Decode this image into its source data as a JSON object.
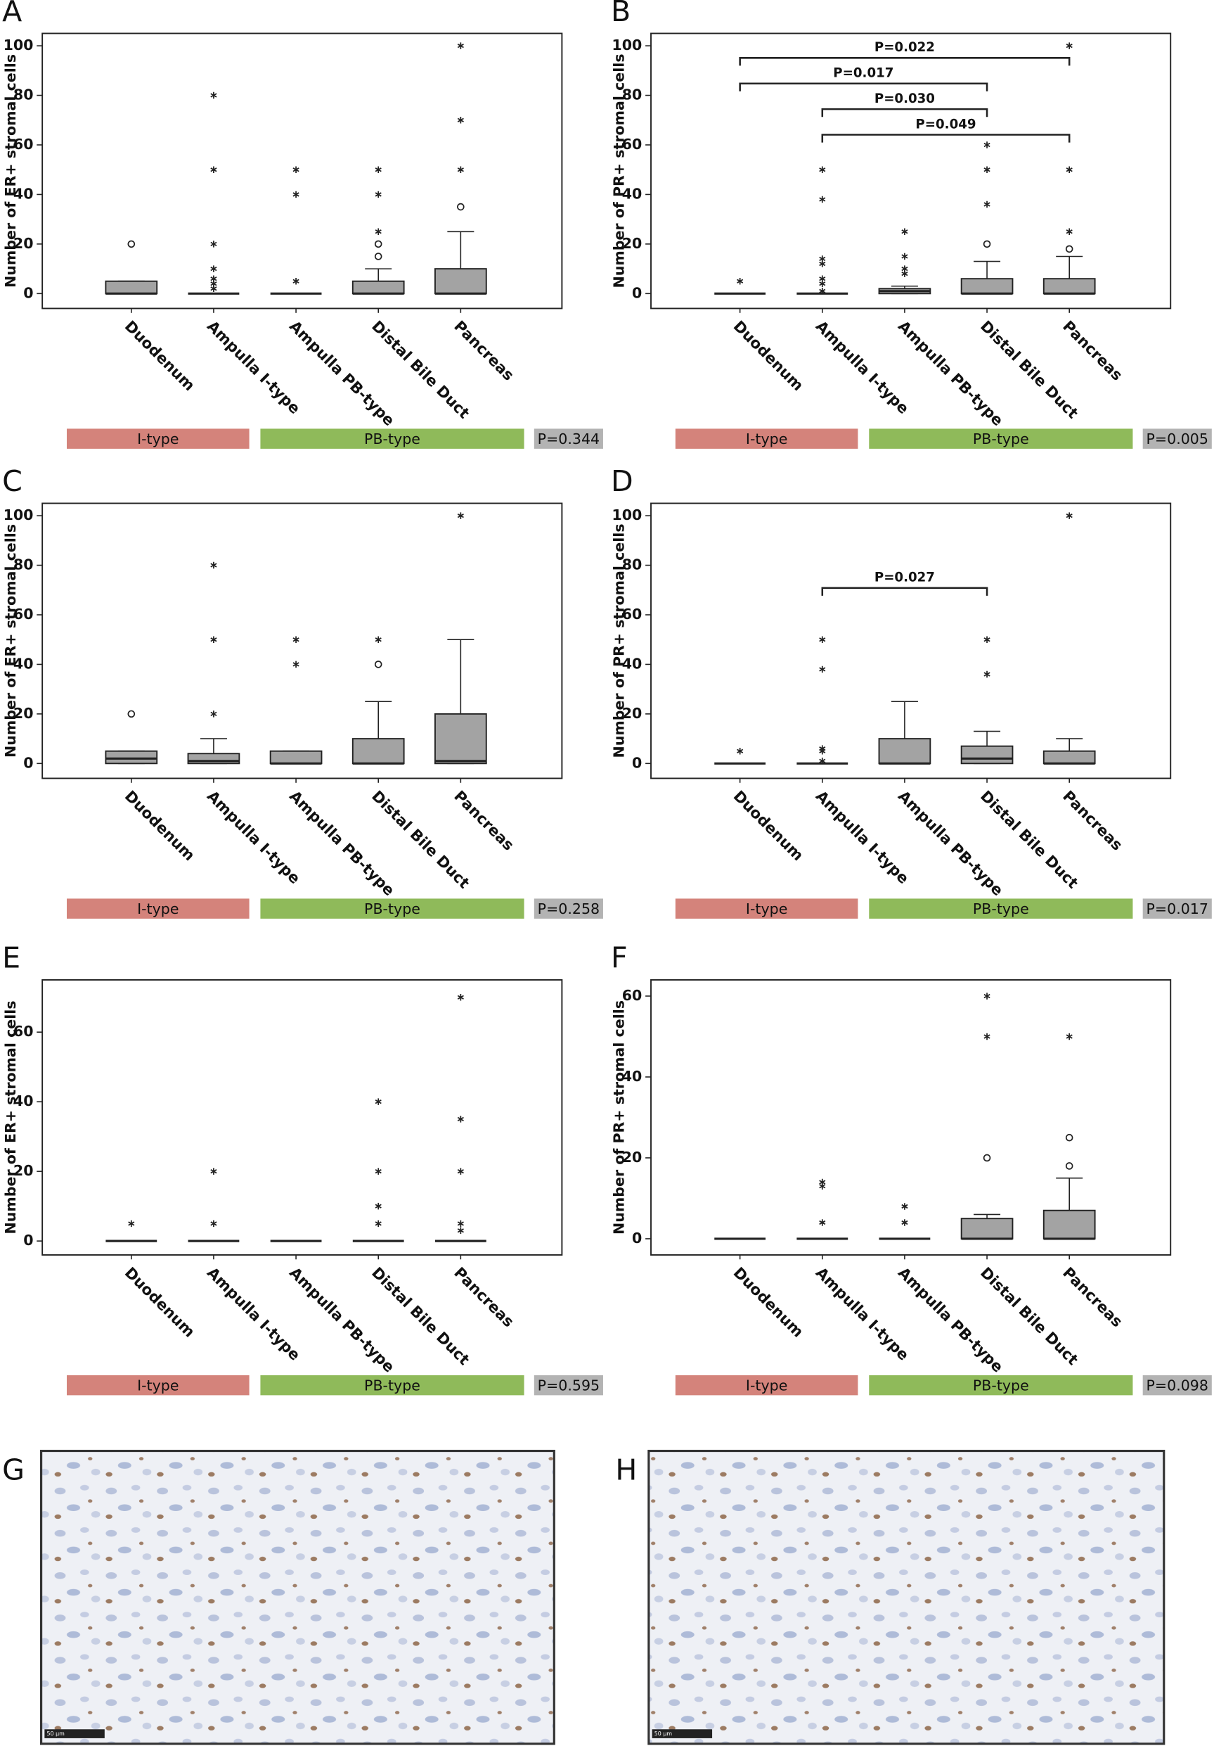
{
  "chart_data": [
    {
      "type": "box",
      "panel": "A",
      "y_label": "Number of ER+ stromal cells",
      "categories": [
        "Duodenum",
        "Ampulla I-type",
        "Ampulla PB-type",
        "Distal Bile Duct",
        "Pancreas"
      ],
      "ylim": [
        -6,
        105
      ],
      "yticks": [
        0,
        20,
        40,
        60,
        80,
        100
      ],
      "color": "#a3a3a3",
      "boxes": [
        {
          "min": 0,
          "q1": 0,
          "median": 0,
          "q3": 5,
          "max": 5,
          "outliers": [
            20
          ],
          "extremes": []
        },
        {
          "min": 0,
          "q1": 0,
          "median": 0,
          "q3": 0,
          "max": 0,
          "outliers": [],
          "extremes": [
            80,
            50,
            20,
            10,
            6,
            4,
            2
          ]
        },
        {
          "min": 0,
          "q1": 0,
          "median": 0,
          "q3": 0,
          "max": 0,
          "outliers": [],
          "extremes": [
            50,
            40,
            5
          ]
        },
        {
          "min": 0,
          "q1": 0,
          "median": 0,
          "q3": 5,
          "max": 10,
          "outliers": [
            20,
            15
          ],
          "extremes": [
            50,
            40,
            25
          ]
        },
        {
          "min": 0,
          "q1": 0,
          "median": 0,
          "q3": 10,
          "max": 25,
          "outliers": [
            35
          ],
          "extremes": [
            100,
            70,
            50
          ]
        }
      ],
      "comparisons": [],
      "groups": [
        {
          "name": "I-type",
          "color": "#d4837b"
        },
        {
          "name": "PB-type",
          "color": "#8fba5a"
        }
      ],
      "p_value": "P=0.344",
      "p_color": "#b3b3b3"
    },
    {
      "type": "box",
      "panel": "B",
      "y_label": "Number of PR+ stromal cells",
      "categories": [
        "Duodenum",
        "Ampulla I-type",
        "Ampulla PB-type",
        "Distal Bile Duct",
        "Pancreas"
      ],
      "ylim": [
        -6,
        105
      ],
      "yticks": [
        0,
        20,
        40,
        60,
        80,
        100
      ],
      "color": "#a3a3a3",
      "boxes": [
        {
          "min": 0,
          "q1": 0,
          "median": 0,
          "q3": 0,
          "max": 0,
          "outliers": [],
          "extremes": [
            5
          ]
        },
        {
          "min": 0,
          "q1": 0,
          "median": 0,
          "q3": 0,
          "max": 0,
          "outliers": [],
          "extremes": [
            50,
            38,
            14,
            12,
            6,
            4,
            1
          ]
        },
        {
          "min": 0,
          "q1": 0,
          "median": 1,
          "q3": 2,
          "max": 3,
          "outliers": [],
          "extremes": [
            25,
            15,
            10,
            8
          ]
        },
        {
          "min": 0,
          "q1": 0,
          "median": 0,
          "q3": 6,
          "max": 13,
          "outliers": [
            20
          ],
          "extremes": [
            60,
            50,
            36
          ]
        },
        {
          "min": 0,
          "q1": 0,
          "median": 0,
          "q3": 6,
          "max": 15,
          "outliers": [
            18
          ],
          "extremes": [
            100,
            50,
            25
          ]
        }
      ],
      "comparisons": [
        {
          "between": [
            "Duodenum",
            "Pancreas"
          ],
          "label": "P=0.022"
        },
        {
          "between": [
            "Duodenum",
            "Distal Bile Duct"
          ],
          "label": "P=0.017"
        },
        {
          "between": [
            "Ampulla I-type",
            "Distal Bile Duct"
          ],
          "label": "P=0.030"
        },
        {
          "between": [
            "Ampulla I-type",
            "Pancreas"
          ],
          "label": "P=0.049"
        }
      ],
      "groups": [
        {
          "name": "I-type",
          "color": "#d4837b"
        },
        {
          "name": "PB-type",
          "color": "#8fba5a"
        }
      ],
      "p_value": "P=0.005",
      "p_color": "#b3b3b3"
    },
    {
      "type": "box",
      "panel": "C",
      "y_label": "Number of ER+ stromal cells",
      "categories": [
        "Duodenum",
        "Ampulla I-type",
        "Ampulla PB-type",
        "Distal Bile Duct",
        "Pancreas"
      ],
      "ylim": [
        -6,
        105
      ],
      "yticks": [
        0,
        20,
        40,
        60,
        80,
        100
      ],
      "color": "#a3a3a3",
      "boxes": [
        {
          "min": 0,
          "q1": 0,
          "median": 2,
          "q3": 5,
          "max": 5,
          "outliers": [
            20
          ],
          "extremes": []
        },
        {
          "min": 0,
          "q1": 0,
          "median": 1,
          "q3": 4,
          "max": 10,
          "outliers": [],
          "extremes": [
            80,
            50,
            20
          ]
        },
        {
          "min": 0,
          "q1": 0,
          "median": 0,
          "q3": 5,
          "max": 5,
          "outliers": [],
          "extremes": [
            50,
            40
          ]
        },
        {
          "min": 0,
          "q1": 0,
          "median": 0,
          "q3": 10,
          "max": 25,
          "outliers": [
            40
          ],
          "extremes": [
            50
          ]
        },
        {
          "min": 0,
          "q1": 0,
          "median": 1,
          "q3": 20,
          "max": 50,
          "outliers": [],
          "extremes": [
            100
          ]
        }
      ],
      "comparisons": [],
      "groups": [
        {
          "name": "I-type",
          "color": "#d4837b"
        },
        {
          "name": "PB-type",
          "color": "#8fba5a"
        }
      ],
      "p_value": "P=0.258",
      "p_color": "#b3b3b3"
    },
    {
      "type": "box",
      "panel": "D",
      "y_label": "Number of PR+ stromal cells",
      "categories": [
        "Duodenum",
        "Ampulla I-type",
        "Ampulla PB-type",
        "Distal Bile Duct",
        "Pancreas"
      ],
      "ylim": [
        -6,
        105
      ],
      "yticks": [
        0,
        20,
        40,
        60,
        80,
        100
      ],
      "color": "#a3a3a3",
      "boxes": [
        {
          "min": 0,
          "q1": 0,
          "median": 0,
          "q3": 0,
          "max": 0,
          "outliers": [],
          "extremes": [
            5
          ]
        },
        {
          "min": 0,
          "q1": 0,
          "median": 0,
          "q3": 0,
          "max": 0,
          "outliers": [],
          "extremes": [
            50,
            38,
            6,
            5,
            1
          ]
        },
        {
          "min": 0,
          "q1": 0,
          "median": 0,
          "q3": 10,
          "max": 25,
          "outliers": [],
          "extremes": []
        },
        {
          "min": 0,
          "q1": 0,
          "median": 2,
          "q3": 7,
          "max": 13,
          "outliers": [],
          "extremes": [
            50,
            36
          ]
        },
        {
          "min": 0,
          "q1": 0,
          "median": 0,
          "q3": 5,
          "max": 10,
          "outliers": [],
          "extremes": [
            100
          ]
        }
      ],
      "comparisons": [
        {
          "between": [
            "Ampulla I-type",
            "Distal Bile Duct"
          ],
          "label": "P=0.027"
        }
      ],
      "groups": [
        {
          "name": "I-type",
          "color": "#d4837b"
        },
        {
          "name": "PB-type",
          "color": "#8fba5a"
        }
      ],
      "p_value": "P=0.017",
      "p_color": "#b3b3b3"
    },
    {
      "type": "box",
      "panel": "E",
      "y_label": "Number of ER+ stromal cells",
      "categories": [
        "Duodenum",
        "Ampulla I-type",
        "Ampulla PB-type",
        "Distal Bile Duct",
        "Pancreas"
      ],
      "ylim": [
        -4,
        75
      ],
      "yticks": [
        0,
        20,
        40,
        60
      ],
      "color": "#a3a3a3",
      "boxes": [
        {
          "min": 0,
          "q1": 0,
          "median": 0,
          "q3": 0,
          "max": 0,
          "outliers": [],
          "extremes": [
            5
          ]
        },
        {
          "min": 0,
          "q1": 0,
          "median": 0,
          "q3": 0,
          "max": 0,
          "outliers": [],
          "extremes": [
            20,
            5
          ]
        },
        {
          "min": 0,
          "q1": 0,
          "median": 0,
          "q3": 0,
          "max": 0,
          "outliers": [],
          "extremes": []
        },
        {
          "min": 0,
          "q1": 0,
          "median": 0,
          "q3": 0,
          "max": 0,
          "outliers": [],
          "extremes": [
            40,
            20,
            10,
            5
          ]
        },
        {
          "min": 0,
          "q1": 0,
          "median": 0,
          "q3": 0,
          "max": 0,
          "outliers": [],
          "extremes": [
            70,
            35,
            20,
            5,
            3
          ]
        }
      ],
      "comparisons": [],
      "groups": [
        {
          "name": "I-type",
          "color": "#d4837b"
        },
        {
          "name": "PB-type",
          "color": "#8fba5a"
        }
      ],
      "p_value": "P=0.595",
      "p_color": "#b3b3b3"
    },
    {
      "type": "box",
      "panel": "F",
      "y_label": "Number of PR+ stromal cells",
      "categories": [
        "Duodenum",
        "Ampulla I-type",
        "Ampulla PB-type",
        "Distal Bile Duct",
        "Pancreas"
      ],
      "ylim": [
        -4,
        64
      ],
      "yticks": [
        0,
        20,
        40,
        60
      ],
      "color": "#a3a3a3",
      "boxes": [
        {
          "min": 0,
          "q1": 0,
          "median": 0,
          "q3": 0,
          "max": 0,
          "outliers": [],
          "extremes": []
        },
        {
          "min": 0,
          "q1": 0,
          "median": 0,
          "q3": 0,
          "max": 0,
          "outliers": [],
          "extremes": [
            14,
            13,
            4
          ]
        },
        {
          "min": 0,
          "q1": 0,
          "median": 0,
          "q3": 0,
          "max": 0,
          "outliers": [],
          "extremes": [
            8,
            4
          ]
        },
        {
          "min": 0,
          "q1": 0,
          "median": 0,
          "q3": 5,
          "max": 6,
          "outliers": [
            20
          ],
          "extremes": [
            60,
            50
          ]
        },
        {
          "min": 0,
          "q1": 0,
          "median": 0,
          "q3": 7,
          "max": 15,
          "outliers": [
            25,
            18
          ],
          "extremes": [
            50
          ]
        }
      ],
      "comparisons": [],
      "groups": [
        {
          "name": "I-type",
          "color": "#d4837b"
        },
        {
          "name": "PB-type",
          "color": "#8fba5a"
        }
      ],
      "p_value": "P=0.098",
      "p_color": "#b3b3b3"
    }
  ],
  "images": [
    {
      "panel": "G",
      "scale_bar": "50 µm"
    },
    {
      "panel": "H",
      "scale_bar": "50 µm"
    }
  ]
}
